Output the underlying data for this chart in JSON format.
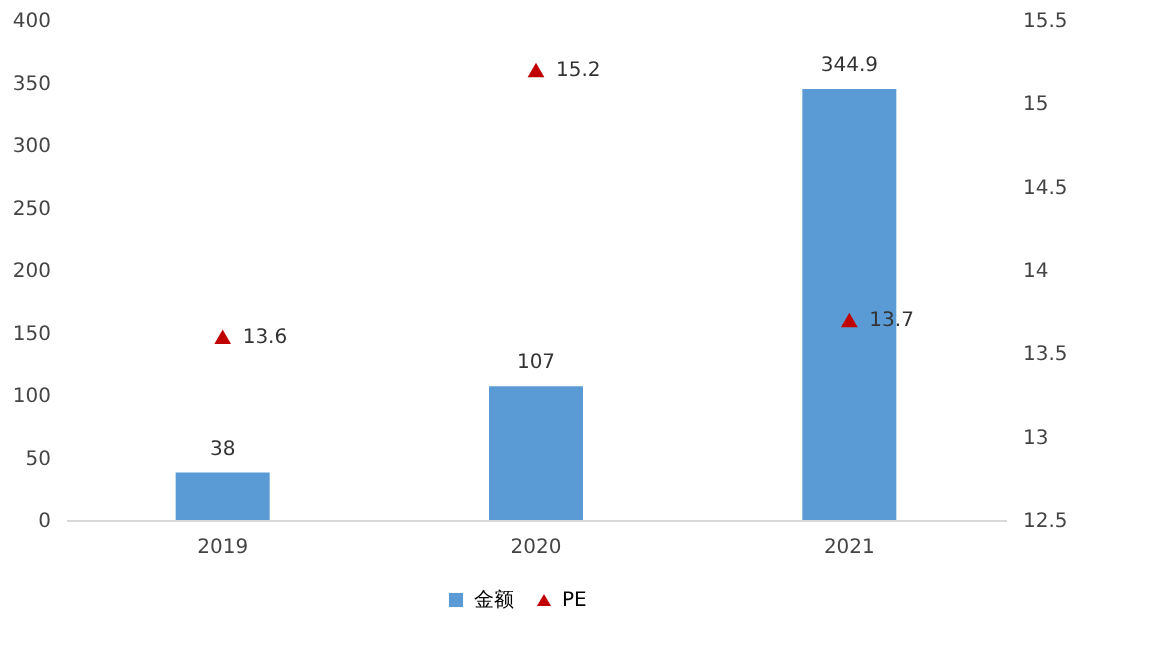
{
  "chart_data": {
    "type": "bar",
    "categories": [
      "2019",
      "2020",
      "2021"
    ],
    "series": [
      {
        "name": "金额",
        "color": "#5b9bd5",
        "values": [
          38,
          107,
          344.9
        ]
      },
      {
        "name": "PE",
        "type": "scatter",
        "axis": "y2",
        "color": "#c00000",
        "marker": "triangle",
        "values": [
          13.6,
          15.2,
          13.7
        ]
      }
    ],
    "ylim": [
      0,
      400
    ],
    "yticks": [
      0,
      50,
      100,
      150,
      200,
      250,
      300,
      350,
      400
    ],
    "y2lim": [
      12.5,
      15.5
    ],
    "y2ticks": [
      12.5,
      13,
      13.5,
      14,
      14.5,
      15,
      15.5
    ],
    "data_labels": true,
    "legend": "bottom",
    "grid": false
  }
}
